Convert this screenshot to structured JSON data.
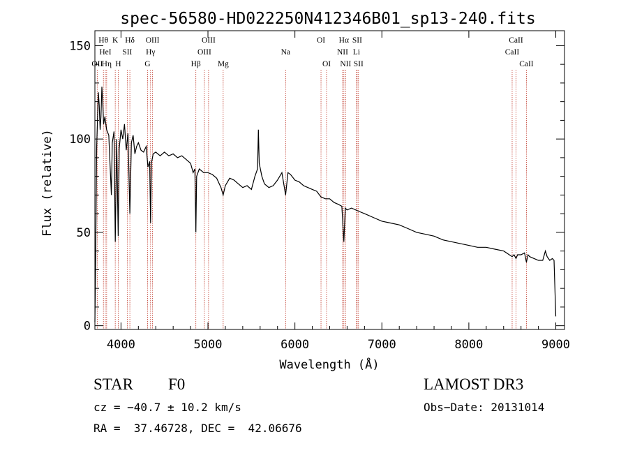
{
  "chart_data": {
    "type": "line",
    "title": "spec-56580-HD022250N412346B01_sp13-240.fits",
    "xlabel": "Wavelength (Å)",
    "ylabel": "Flux (relative)",
    "xlim": [
      3700,
      9100
    ],
    "ylim": [
      -2,
      158
    ],
    "xticks": [
      4000,
      5000,
      6000,
      7000,
      8000,
      9000
    ],
    "yticks": [
      0,
      50,
      100,
      150
    ],
    "grid": false,
    "series": [
      {
        "name": "flux",
        "x": [
          3700,
          3710,
          3720,
          3730,
          3740,
          3750,
          3760,
          3770,
          3780,
          3790,
          3800,
          3815,
          3835,
          3860,
          3889,
          3900,
          3920,
          3934,
          3950,
          3968,
          3980,
          4000,
          4020,
          4040,
          4060,
          4080,
          4102,
          4120,
          4140,
          4160,
          4180,
          4200,
          4230,
          4260,
          4290,
          4310,
          4330,
          4340,
          4350,
          4370,
          4400,
          4450,
          4500,
          4550,
          4600,
          4650,
          4700,
          4750,
          4800,
          4830,
          4850,
          4861,
          4870,
          4900,
          4950,
          5000,
          5050,
          5100,
          5150,
          5175,
          5200,
          5250,
          5300,
          5350,
          5400,
          5450,
          5500,
          5540,
          5570,
          5580,
          5590,
          5620,
          5650,
          5700,
          5750,
          5800,
          5850,
          5893,
          5920,
          5950,
          6000,
          6050,
          6100,
          6150,
          6200,
          6250,
          6300,
          6350,
          6400,
          6450,
          6500,
          6540,
          6563,
          6580,
          6600,
          6650,
          6700,
          6750,
          6800,
          6900,
          7000,
          7100,
          7200,
          7300,
          7400,
          7500,
          7600,
          7700,
          7800,
          7900,
          8000,
          8100,
          8200,
          8300,
          8400,
          8498,
          8520,
          8542,
          8560,
          8600,
          8640,
          8662,
          8680,
          8700,
          8750,
          8800,
          8850,
          8880,
          8900,
          8930,
          8960,
          8980,
          9000
        ],
        "values": [
          2,
          40,
          95,
          110,
          125,
          118,
          105,
          112,
          128,
          120,
          108,
          112,
          105,
          102,
          70,
          98,
          104,
          45,
          100,
          48,
          95,
          105,
          100,
          108,
          94,
          103,
          60,
          98,
          102,
          92,
          96,
          98,
          94,
          93,
          96,
          85,
          88,
          55,
          87,
          92,
          93,
          91,
          93,
          91,
          92,
          90,
          91,
          89,
          87,
          82,
          84,
          50,
          80,
          84,
          82,
          82,
          81,
          79,
          74,
          70,
          75,
          79,
          78,
          76,
          74,
          75,
          73,
          80,
          84,
          105,
          87,
          80,
          76,
          74,
          75,
          78,
          82,
          70,
          82,
          81,
          78,
          77,
          75,
          74,
          73,
          72,
          69,
          68,
          68,
          66,
          65,
          64,
          45,
          63,
          62,
          63,
          62,
          61,
          60,
          58,
          56,
          55,
          54,
          52,
          50,
          49,
          48,
          46,
          45,
          44,
          43,
          42,
          42,
          41,
          40,
          37,
          38,
          36,
          38,
          38,
          39,
          34,
          38,
          37,
          36,
          35,
          35,
          40,
          37,
          35,
          36,
          35,
          5
        ]
      }
    ],
    "spectral_lines": [
      {
        "label": "OII",
        "wavelength": 3727,
        "row": 3
      },
      {
        "label": "Hθ",
        "wavelength": 3798,
        "row": 1
      },
      {
        "label": "HeI",
        "wavelength": 3820,
        "row": 2
      },
      {
        "label": "Hη",
        "wavelength": 3835,
        "row": 3
      },
      {
        "label": "SII",
        "wavelength": 4072,
        "row": 2
      },
      {
        "label": "K",
        "wavelength": 3934,
        "row": 1
      },
      {
        "label": "H",
        "wavelength": 3968,
        "row": 3
      },
      {
        "label": "Hδ",
        "wavelength": 4102,
        "row": 1
      },
      {
        "label": "OIII",
        "wavelength": 4363,
        "row": 1
      },
      {
        "label": "Hγ",
        "wavelength": 4340,
        "row": 2
      },
      {
        "label": "G",
        "wavelength": 4305,
        "row": 3
      },
      {
        "label": "Hβ",
        "wavelength": 4861,
        "row": 3
      },
      {
        "label": "OIII",
        "wavelength": 5007,
        "row": 1
      },
      {
        "label": "OIII",
        "wavelength": 4959,
        "row": 2
      },
      {
        "label": "Mg",
        "wavelength": 5175,
        "row": 3
      },
      {
        "label": "Na",
        "wavelength": 5893,
        "row": 2
      },
      {
        "label": "OI",
        "wavelength": 6300,
        "row": 1
      },
      {
        "label": "OI",
        "wavelength": 6364,
        "row": 3
      },
      {
        "label": "Hα",
        "wavelength": 6563,
        "row": 1
      },
      {
        "label": "NII",
        "wavelength": 6548,
        "row": 2
      },
      {
        "label": "NII",
        "wavelength": 6583,
        "row": 3
      },
      {
        "label": "SII",
        "wavelength": 6716,
        "row": 1
      },
      {
        "label": "Li",
        "wavelength": 6708,
        "row": 2
      },
      {
        "label": "SII",
        "wavelength": 6731,
        "row": 3
      },
      {
        "label": "CaII",
        "wavelength": 8542,
        "row": 1
      },
      {
        "label": "CaII",
        "wavelength": 8498,
        "row": 2
      },
      {
        "label": "CaII",
        "wavelength": 8662,
        "row": 3
      }
    ],
    "annotations": {
      "object_class": "STAR",
      "subclass": "F0",
      "redshift": "cz = −40.7 ± 10.2 km/s",
      "coordinates": "RA =  37.46728, DEC =  42.06676",
      "survey": "LAMOST DR3",
      "obs_date": "Obs−Date: 20131014"
    }
  }
}
